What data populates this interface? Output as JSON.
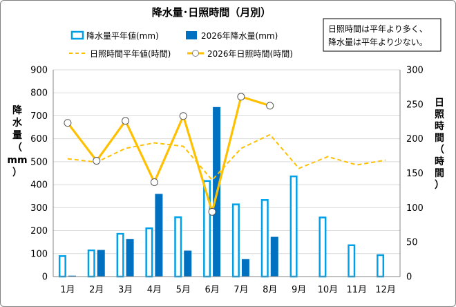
{
  "chart_data": {
    "type": "bar+line",
    "title": "降水量･日照時間（月別）",
    "annotation": [
      "日照時間は平年より多く、",
      "降水量は平年より少ない。"
    ],
    "categories": [
      "1月",
      "2月",
      "3月",
      "4月",
      "5月",
      "6月",
      "7月",
      "8月",
      "9月",
      "10月",
      "11月",
      "12月"
    ],
    "y_left": {
      "label": [
        "降",
        "水",
        "量",
        "（",
        "mm",
        "）"
      ],
      "range": [
        0,
        900
      ],
      "ticks": [
        0,
        100,
        200,
        300,
        400,
        500,
        600,
        700,
        800,
        900
      ]
    },
    "y_right": {
      "label": [
        "日",
        "照",
        "時",
        "間",
        "（",
        "時",
        "間",
        "）"
      ],
      "range": [
        0,
        300
      ],
      "ticks": [
        0,
        50,
        100,
        150,
        200,
        250,
        300
      ]
    },
    "grid": "horizontal",
    "legend_position": "top",
    "series": [
      {
        "name": "降水量平年値(mm)",
        "type": "bar-outline",
        "axis": "left",
        "color": "#00a0e9",
        "values": [
          93,
          118,
          190,
          214,
          262,
          420,
          318,
          337,
          440,
          261,
          140,
          97
        ]
      },
      {
        "name": "2026年降水量(mm)",
        "type": "bar",
        "axis": "left",
        "color": "#0070c0",
        "values": [
          4,
          116,
          163,
          360,
          113,
          738,
          76,
          173,
          null,
          null,
          null,
          null
        ]
      },
      {
        "name": "日照時間平年値(時間)",
        "type": "line-dashed",
        "axis": "right",
        "color": "#ffc000",
        "values": [
          171,
          166,
          186,
          194,
          189,
          140,
          186,
          206,
          157,
          174,
          162,
          169
        ]
      },
      {
        "name": "2026年日照時間(時間)",
        "type": "line-marker",
        "axis": "right",
        "color": "#ffc000",
        "values": [
          223,
          168,
          226,
          137,
          233,
          94,
          261,
          248,
          null,
          null,
          null,
          null
        ]
      }
    ]
  }
}
